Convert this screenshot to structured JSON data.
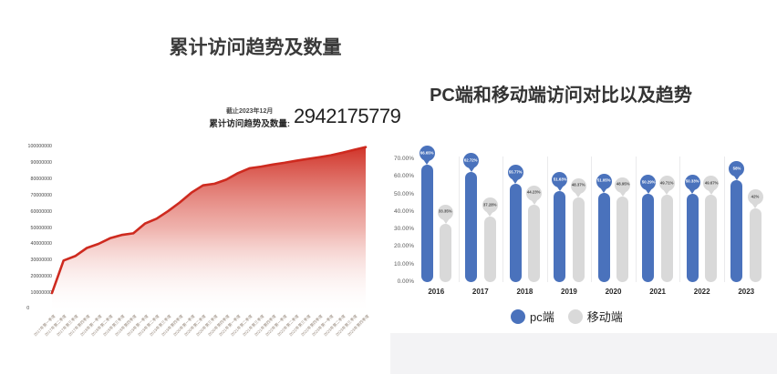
{
  "colors": {
    "background": "#ffffff",
    "trend_red": "#ce2a1f",
    "pc_blue": "#4a72bc",
    "mobile_gray": "#d9d9d9"
  },
  "chart_data": [
    {
      "type": "area",
      "title": "累计访问趋势及数量",
      "annotation": {
        "asof": "截止2023年12月",
        "label": "累计访问趋势及数量:",
        "value": "2942175779"
      },
      "line_color": "#ce2a1f",
      "ylim": [
        0,
        100000000
      ],
      "y_ticks": [
        "100000000",
        "90000000",
        "80000000",
        "70000000",
        "60000000",
        "50000000",
        "40000000",
        "30000000",
        "20000000",
        "10000000"
      ],
      "y_zero": "0",
      "grid": false,
      "x": [
        "2017年第一季度",
        "2017年第二季度",
        "2017年第三季度",
        "2017年第四季度",
        "2018年第一季度",
        "2018年第二季度",
        "2018年第三季度",
        "2018年第四季度",
        "2019年第一季度",
        "2019年第二季度",
        "2019年第三季度",
        "2019年第四季度",
        "2020年第一季度",
        "2020年第二季度",
        "2020年第三季度",
        "2020年第四季度",
        "2021年第一季度",
        "2021年第二季度",
        "2021年第三季度",
        "2021年第四季度",
        "2022年第一季度",
        "2022年第二季度",
        "2022年第三季度",
        "2022年第四季度",
        "2023年第一季度",
        "2023年第二季度",
        "2023年第三季度",
        "2023年第四季度"
      ],
      "values": [
        10300000,
        30300000,
        33000000,
        38000000,
        40500000,
        44000000,
        46000000,
        47000000,
        53000000,
        56000000,
        60700000,
        66000000,
        72000000,
        76500000,
        77500000,
        80000000,
        84000000,
        87000000,
        88000000,
        89300000,
        90400000,
        91600000,
        92700000,
        93800000,
        95000000,
        96600000,
        98300000,
        100000000
      ]
    },
    {
      "type": "bar",
      "title": "PC端和移动端访问对比以及趋势",
      "categories": [
        "2016",
        "2017",
        "2018",
        "2019",
        "2020",
        "2021",
        "2022",
        "2023"
      ],
      "series": [
        {
          "name": "pc端",
          "color": "#4a72bc",
          "values": [
            66.65,
            62.72,
            55.77,
            51.63,
            51.05,
            50.29,
            50.33,
            58
          ],
          "labels": [
            "66.65%",
            "62.72%",
            "55.77%",
            "51.63%",
            "51.05%",
            "50.29%",
            "50.33%",
            "58%"
          ]
        },
        {
          "name": "移动端",
          "color": "#d9d9d9",
          "values": [
            33.35,
            37.28,
            44.23,
            48.37,
            48.95,
            49.71,
            49.67,
            42
          ],
          "labels": [
            "33.35%",
            "37.28%",
            "44.23%",
            "48.37%",
            "48.95%",
            "49.71%",
            "49.67%",
            "42%"
          ]
        }
      ],
      "ylim": [
        0,
        70
      ],
      "y_ticks": [
        "70.00%",
        "60.00%",
        "50.00%",
        "40.00%",
        "30.00%",
        "20.00%",
        "10.00%",
        "0.00%"
      ],
      "grid": false,
      "legend_position": "bottom"
    }
  ]
}
